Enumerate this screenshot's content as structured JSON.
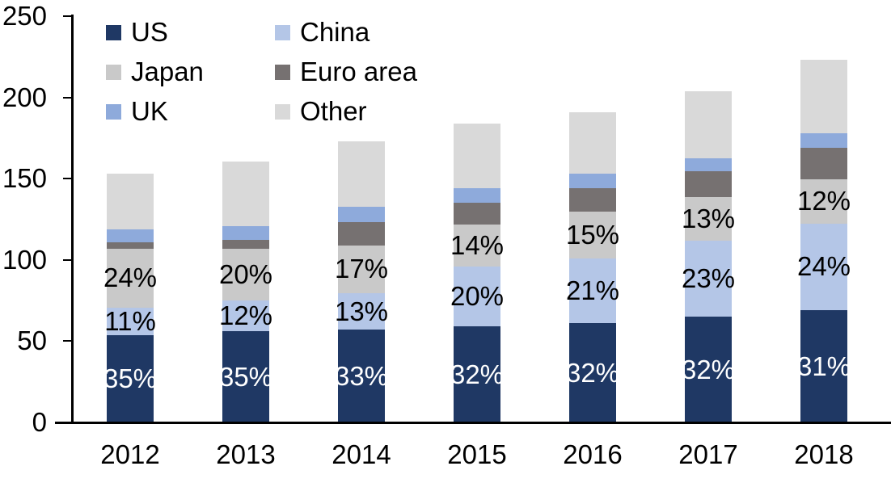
{
  "chart_data": {
    "type": "bar",
    "stacked": true,
    "title": "",
    "xlabel": "",
    "ylabel": "",
    "categories": [
      "2012",
      "2013",
      "2014",
      "2015",
      "2016",
      "2017",
      "2018"
    ],
    "series": [
      {
        "name": "US",
        "color": "#1F3864",
        "values": [
          53.5,
          56,
          57,
          59,
          61,
          65,
          69
        ],
        "labels": [
          "35%",
          "35%",
          "33%",
          "32%",
          "32%",
          "32%",
          "31%"
        ],
        "label_color": "#FFFFFF"
      },
      {
        "name": "China",
        "color": "#B4C6E7",
        "values": [
          17,
          19,
          22.5,
          37,
          40,
          47,
          53.5
        ],
        "labels": [
          "11%",
          "12%",
          "13%",
          "20%",
          "21%",
          "23%",
          "24%"
        ],
        "label_color": "#000000"
      },
      {
        "name": "Japan",
        "color": "#C9C9C9",
        "values": [
          36.5,
          32,
          29.5,
          26,
          28.5,
          26.5,
          27
        ],
        "labels": [
          "24%",
          "20%",
          "17%",
          "14%",
          "15%",
          "13%",
          "12%"
        ],
        "label_color": "#000000"
      },
      {
        "name": "Euro area",
        "color": "#767171",
        "values": [
          4,
          5.5,
          14.5,
          13,
          14.5,
          16,
          19.5
        ]
      },
      {
        "name": "UK",
        "color": "#8EAADB",
        "values": [
          8,
          8.5,
          9,
          9,
          9,
          8,
          9
        ]
      },
      {
        "name": "Other",
        "color": "#D9D9D9",
        "values": [
          34,
          39.5,
          40.5,
          40,
          38,
          41.5,
          45
        ]
      }
    ],
    "totals": [
      153,
      160.5,
      173,
      184,
      191,
      204,
      223
    ],
    "ylim": [
      0,
      250
    ],
    "yticks": [
      0,
      50,
      100,
      150,
      200,
      250
    ],
    "grid": false,
    "legend_position": "top-left",
    "legend_rows": [
      [
        "US",
        "China"
      ],
      [
        "Japan",
        "Euro area"
      ],
      [
        "UK",
        "Other"
      ]
    ],
    "axis_color": "#000000",
    "text_color": "#000000"
  }
}
